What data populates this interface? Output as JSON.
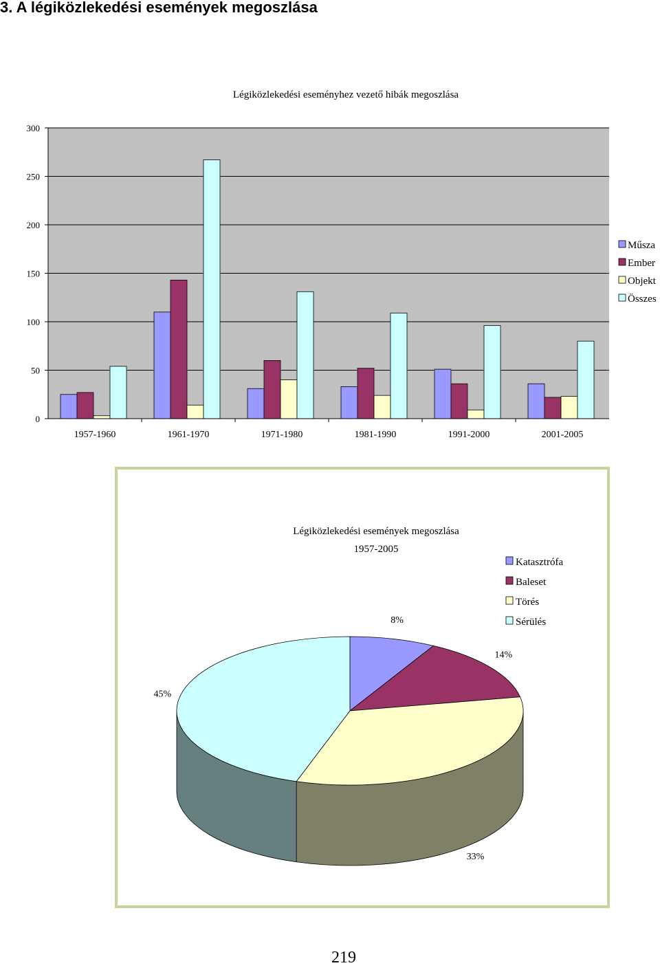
{
  "page": {
    "heading": "3. A légiközlekedési események megoszlása",
    "page_number": "219"
  },
  "chart_data": [
    {
      "type": "bar",
      "title": "Légiközlekedési eseményhez vezető hibák megoszlása",
      "xlabel": "",
      "ylabel": "",
      "categories": [
        "1957-1960",
        "1961-1970",
        "1971-1980",
        "1981-1990",
        "1991-2000",
        "2001-2005"
      ],
      "yticks": [
        "0",
        "50",
        "100",
        "150",
        "200",
        "250",
        "300"
      ],
      "ylim": [
        0,
        300
      ],
      "grid": true,
      "legend_position": "right",
      "series": [
        {
          "name": "Műsza",
          "color": "#9999ff",
          "values": [
            25,
            110,
            31,
            33,
            51,
            36
          ]
        },
        {
          "name": "Ember",
          "color": "#993366",
          "values": [
            27,
            143,
            60,
            52,
            36,
            22
          ]
        },
        {
          "name": "Objekt",
          "color": "#ffffcc",
          "values": [
            3,
            14,
            40,
            24,
            9,
            23
          ]
        },
        {
          "name": "Összes",
          "color": "#ccffff",
          "values": [
            54,
            267,
            131,
            109,
            96,
            80
          ]
        }
      ]
    },
    {
      "type": "pie",
      "title": "Légiközlekedési események megoszlása",
      "subtitle": "1957-2005",
      "legend_position": "top-right",
      "slices": [
        {
          "label": "Katasztrófa",
          "value": 8,
          "value_label": "8%",
          "color": "#9999ff",
          "side_color": "#66668f"
        },
        {
          "label": "Baleset",
          "value": 14,
          "value_label": "14%",
          "color": "#993366",
          "side_color": "#5e1f3f"
        },
        {
          "label": "Törés",
          "value": 33,
          "value_label": "33%",
          "color": "#ffffcc",
          "side_color": "#808066"
        },
        {
          "label": "Sérülés",
          "value": 45,
          "value_label": "45%",
          "color": "#ccffff",
          "side_color": "#668080"
        }
      ]
    }
  ]
}
